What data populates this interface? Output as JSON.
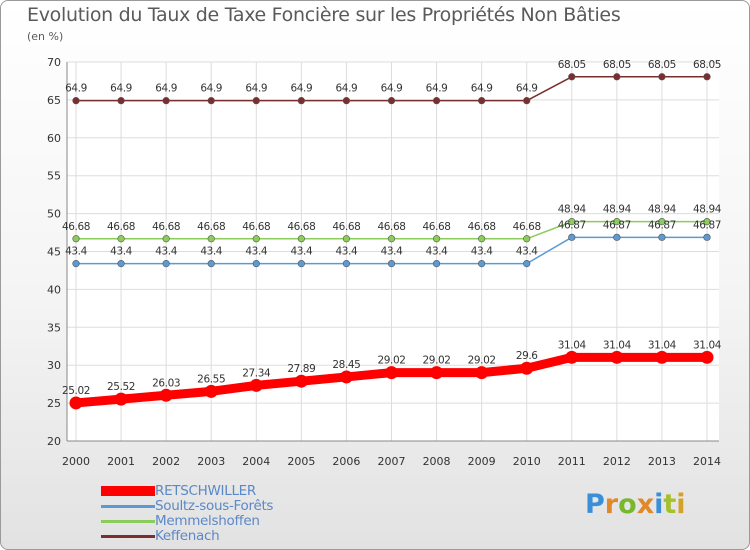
{
  "chart_data": {
    "type": "line",
    "title": "Evolution du Taux de Taxe Foncière sur les Propriétés Non Bâties",
    "unit_label": "(en %)",
    "xlabel": "",
    "ylabel": "",
    "ylim": [
      20,
      70
    ],
    "y_ticks": [
      "20",
      "25",
      "30",
      "35",
      "40",
      "45",
      "50",
      "55",
      "60",
      "65",
      "70"
    ],
    "x": [
      "2000",
      "2001",
      "2002",
      "2003",
      "2004",
      "2005",
      "2006",
      "2007",
      "2008",
      "2009",
      "2010",
      "2011",
      "2012",
      "2013",
      "2014"
    ],
    "grid": true,
    "legend_position": "bottom-left",
    "series": [
      {
        "name": "Keffenach",
        "color": "#7b2e2e",
        "values": [
          64.9,
          64.9,
          64.9,
          64.9,
          64.9,
          64.9,
          64.9,
          64.9,
          64.9,
          64.9,
          64.9,
          68.05,
          68.05,
          68.05,
          68.05
        ],
        "labels": [
          "64.9",
          "64.9",
          "64.9",
          "64.9",
          "64.9",
          "64.9",
          "64.9",
          "64.9",
          "64.9",
          "64.9",
          "64.9",
          "68.05",
          "68.05",
          "68.05",
          "68.05"
        ]
      },
      {
        "name": "Memmelshoffen",
        "color": "#8ccc5a",
        "values": [
          46.68,
          46.68,
          46.68,
          46.68,
          46.68,
          46.68,
          46.68,
          46.68,
          46.68,
          46.68,
          46.68,
          48.94,
          48.94,
          48.94,
          48.94
        ],
        "labels": [
          "46.68",
          "46.68",
          "46.68",
          "46.68",
          "46.68",
          "46.68",
          "46.68",
          "46.68",
          "46.68",
          "46.68",
          "46.68",
          "48.94",
          "48.94",
          "48.94",
          "48.94"
        ]
      },
      {
        "name": "Soultz-sous-Forêts",
        "color": "#5b9bd5",
        "values": [
          43.4,
          43.4,
          43.4,
          43.4,
          43.4,
          43.4,
          43.4,
          43.4,
          43.4,
          43.4,
          43.4,
          46.87,
          46.87,
          46.87,
          46.87
        ],
        "labels": [
          "43.4",
          "43.4",
          "43.4",
          "43.4",
          "43.4",
          "43.4",
          "43.4",
          "43.4",
          "43.4",
          "43.4",
          "43.4",
          "46.87",
          "46.87",
          "46.87",
          "46.87"
        ]
      },
      {
        "name": "RETSCHWILLER",
        "color": "#ff0000",
        "values": [
          25.02,
          25.52,
          26.03,
          26.55,
          27.34,
          27.89,
          28.45,
          29.02,
          29.02,
          29.02,
          29.6,
          31.04,
          31.04,
          31.04,
          31.04
        ],
        "labels": [
          "25.02",
          "25.52",
          "26.03",
          "26.55",
          "27.34",
          "27.89",
          "28.45",
          "29.02",
          "29.02",
          "29.02",
          "29.6",
          "31.04",
          "31.04",
          "31.04",
          "31.04"
        ]
      }
    ]
  },
  "legend": [
    {
      "name": "RETSCHWILLER",
      "color": "#ff0000"
    },
    {
      "name": "Soultz-sous-Forêts",
      "color": "#5b9bd5"
    },
    {
      "name": "Memmelshoffen",
      "color": "#8ccc5a"
    },
    {
      "name": "Keffenach",
      "color": "#7b2e2e"
    }
  ],
  "logo": {
    "text": "Proxiti"
  }
}
